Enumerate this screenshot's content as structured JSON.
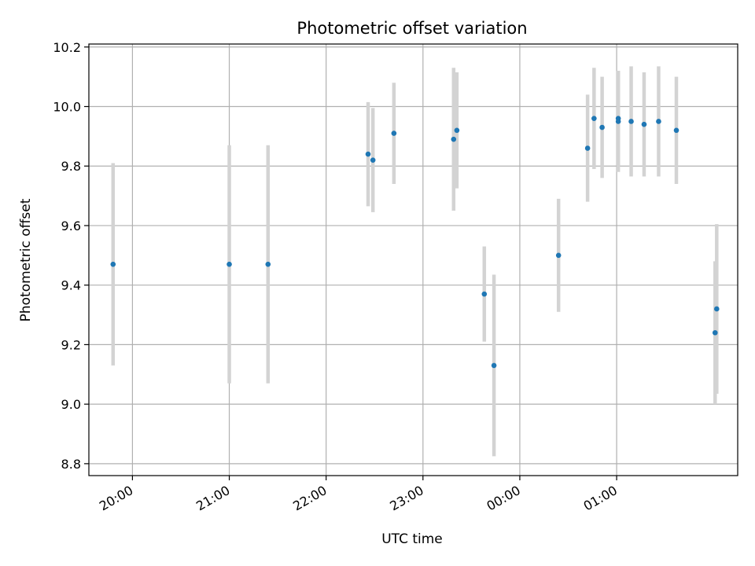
{
  "chart_data": {
    "type": "scatter",
    "title": "Photometric offset variation",
    "xlabel": "UTC time",
    "ylabel": "Photometric offset",
    "x_tick_labels": [
      "20:00",
      "21:00",
      "22:00",
      "23:00",
      "00:00",
      "01:00"
    ],
    "x_tick_times": [
      "20:00",
      "21:00",
      "22:00",
      "23:00",
      "00:00",
      "01:00"
    ],
    "x_range": [
      "19:33",
      "02:15"
    ],
    "ylim": [
      8.76,
      10.21
    ],
    "y_ticks": [
      "8.8",
      "9.0",
      "9.2",
      "9.4",
      "9.6",
      "9.8",
      "10.0",
      "10.2"
    ],
    "grid": true,
    "colors": {
      "points": "#1f77b4",
      "errorbars": "#d3d3d3",
      "grid": "#b0b0b0"
    },
    "series": [
      {
        "points": [
          {
            "t": "19:48",
            "y": 9.47,
            "err": 0.34
          },
          {
            "t": "21:00",
            "y": 9.47,
            "err": 0.4
          },
          {
            "t": "21:24",
            "y": 9.47,
            "err": 0.4
          },
          {
            "t": "22:26",
            "y": 9.84,
            "err": 0.175
          },
          {
            "t": "22:29",
            "y": 9.82,
            "err": 0.175
          },
          {
            "t": "22:42",
            "y": 9.91,
            "err": 0.17
          },
          {
            "t": "23:19",
            "y": 9.89,
            "err": 0.24
          },
          {
            "t": "23:21",
            "y": 9.92,
            "err": 0.195
          },
          {
            "t": "23:38",
            "y": 9.37,
            "err": 0.16
          },
          {
            "t": "23:44",
            "y": 9.13,
            "err": 0.305
          },
          {
            "t": "00:24",
            "y": 9.5,
            "err": 0.19
          },
          {
            "t": "00:42",
            "y": 9.86,
            "err": 0.18
          },
          {
            "t": "00:46",
            "y": 9.96,
            "err": 0.17
          },
          {
            "t": "00:51",
            "y": 9.93,
            "err": 0.17
          },
          {
            "t": "01:01",
            "y": 9.96,
            "err": 0.16
          },
          {
            "t": "01:01",
            "y": 9.95,
            "err": 0.17
          },
          {
            "t": "01:09",
            "y": 9.95,
            "err": 0.185
          },
          {
            "t": "01:17",
            "y": 9.94,
            "err": 0.175
          },
          {
            "t": "01:26",
            "y": 9.95,
            "err": 0.185
          },
          {
            "t": "01:37",
            "y": 9.92,
            "err": 0.18
          },
          {
            "t": "02:01",
            "y": 9.24,
            "err": 0.24
          },
          {
            "t": "02:02",
            "y": 9.32,
            "err": 0.285
          }
        ]
      }
    ]
  }
}
